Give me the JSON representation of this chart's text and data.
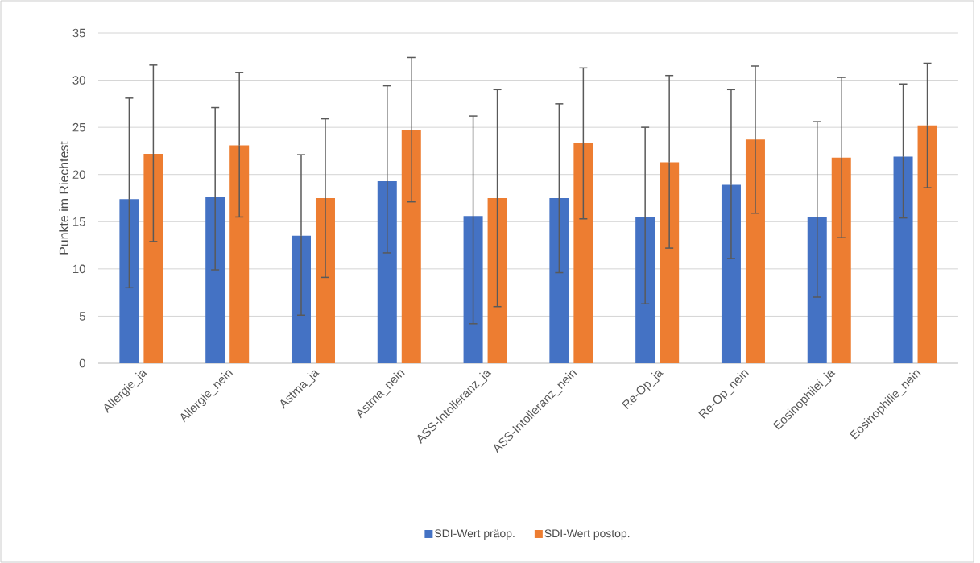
{
  "chart_data": {
    "type": "bar",
    "ylabel": "Punkte im Riechtest",
    "categories": [
      "Allergie_ja",
      "Allergie_nein",
      "Astma_ja",
      "Astma_nein",
      "ASS-Intolleranz_ja",
      "ASS-Intolleranz_nein",
      "Re-Op_ja",
      "Re-Op_nein",
      "Eosinophilei_ja",
      "Eosinophilie_nein"
    ],
    "series": [
      {
        "name": "SDI-Wert präop.",
        "color": "#4472c4",
        "values": [
          17.4,
          17.6,
          13.5,
          19.3,
          15.6,
          17.5,
          15.5,
          18.9,
          15.5,
          21.9
        ],
        "errors": [
          [
            8.0,
            28.1
          ],
          [
            9.9,
            27.1
          ],
          [
            5.1,
            22.1
          ],
          [
            11.7,
            29.4
          ],
          [
            4.2,
            26.2
          ],
          [
            9.6,
            27.5
          ],
          [
            6.3,
            25.0
          ],
          [
            11.1,
            29.0
          ],
          [
            7.0,
            25.6
          ],
          [
            15.4,
            29.6
          ]
        ]
      },
      {
        "name": "SDI-Wert postop.",
        "color": "#ed7d31",
        "values": [
          22.2,
          23.1,
          17.5,
          24.7,
          17.5,
          23.3,
          21.3,
          23.7,
          21.8,
          25.2
        ],
        "errors": [
          [
            12.9,
            31.6
          ],
          [
            15.5,
            30.8
          ],
          [
            9.1,
            25.9
          ],
          [
            17.1,
            32.4
          ],
          [
            6.0,
            29.0
          ],
          [
            15.3,
            31.3
          ],
          [
            12.2,
            30.5
          ],
          [
            15.9,
            31.5
          ],
          [
            13.3,
            30.3
          ],
          [
            18.6,
            31.8
          ]
        ]
      }
    ],
    "ylim": [
      0,
      35
    ],
    "yticks": [
      0,
      5,
      10,
      15,
      20,
      25,
      30,
      35
    ],
    "grid": "y",
    "legend": "bottom"
  }
}
